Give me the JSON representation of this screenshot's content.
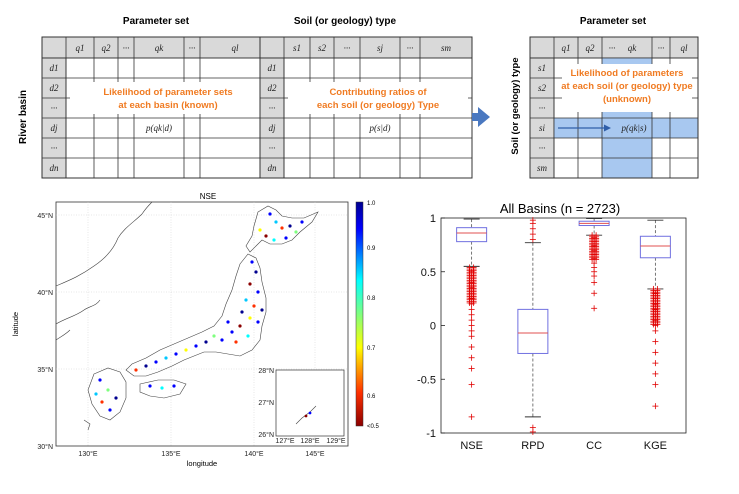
{
  "table1": {
    "title": "Parameter set",
    "col_headers": [
      "q1",
      "q2",
      "···",
      "qk",
      "···",
      "ql"
    ],
    "row_headers": [
      "d1",
      "d2",
      "···",
      "dj",
      "···",
      "dn"
    ],
    "side_label": "River basin",
    "overlay_line1": "Likelihood of parameter sets",
    "overlay_line2": "at each basin (known)",
    "cell_formula": "p(qk|d)"
  },
  "table2": {
    "title": "Soil (or geology) type",
    "col_headers": [
      "s1",
      "s2",
      "···",
      "sj",
      "···",
      "sm"
    ],
    "row_headers": [
      "d1",
      "d2",
      "···",
      "dj",
      "···",
      "dn"
    ],
    "overlay_line1": "Contributing ratios of",
    "overlay_line2": "each soil (or geology) Type",
    "cell_formula": "p(s|d)"
  },
  "table3": {
    "title": "Parameter set",
    "col_headers": [
      "q1",
      "q2",
      "···",
      "qk",
      "···",
      "ql"
    ],
    "row_headers": [
      "s1",
      "s2",
      "···",
      "si",
      "···",
      "sm"
    ],
    "side_label": "Soil (or geology) type",
    "overlay_line1": "Likelihood of parameters",
    "overlay_line2": "at each soil (or geology) type",
    "overlay_line3": "(unknown)",
    "cell_formula": "p(qk|s)"
  },
  "map": {
    "title": "NSE",
    "xlabel": "longitude",
    "ylabel": "latitude",
    "xticks": [
      "130°E",
      "135°E",
      "140°E",
      "145°E"
    ],
    "yticks": [
      "30°N",
      "35°N",
      "40°N",
      "45°N"
    ],
    "colorbar_ticks": [
      "1.0",
      "0.9",
      "0.8",
      "0.7",
      "0.6",
      "<0.5"
    ],
    "inset_xticks": [
      "127°E",
      "128°E",
      "129°E"
    ],
    "inset_yticks": [
      "26°N",
      "27°N",
      "28°N"
    ],
    "colors": {
      "high": "#00008f",
      "low": "#8b0000"
    }
  },
  "chart_data": {
    "type": "box",
    "title": "All Basins (n = 2723)",
    "categories": [
      "NSE",
      "RPD",
      "CC",
      "KGE"
    ],
    "ylim": [
      -1,
      1
    ],
    "yticks": [
      "1",
      "0.5",
      "0",
      "-0.5",
      "-1"
    ],
    "boxes": [
      {
        "name": "NSE",
        "whisker_low": 0.55,
        "q1": 0.78,
        "median": 0.86,
        "q3": 0.91,
        "whisker_high": 0.99
      },
      {
        "name": "RPD",
        "whisker_low": -0.85,
        "q1": -0.26,
        "median": -0.07,
        "q3": 0.15,
        "whisker_high": 0.77
      },
      {
        "name": "CC",
        "whisker_low": 0.84,
        "q1": 0.93,
        "median": 0.95,
        "q3": 0.97,
        "whisker_high": 0.995
      },
      {
        "name": "KGE",
        "whisker_low": 0.34,
        "q1": 0.63,
        "median": 0.74,
        "q3": 0.83,
        "whisker_high": 0.98
      }
    ],
    "box_color": "#7070e0",
    "median_color": "#e05050",
    "outlier_color": "#e00000"
  }
}
